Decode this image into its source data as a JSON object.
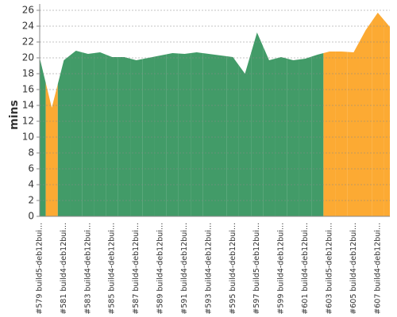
{
  "chart_data": {
    "type": "area",
    "y_label": "mins",
    "categories": [
      "#579 build5-deb12bui...",
      null,
      "#581 build4-deb12bui...",
      null,
      "#583 build4-deb12bui...",
      null,
      "#585 build4-deb12bui...",
      null,
      "#587 build4-deb12bui...",
      null,
      "#589 build4-deb12bui...",
      null,
      "#591 build4-deb12bui...",
      null,
      "#593 build4-deb12bui...",
      null,
      "#595 build4-deb12bui...",
      null,
      "#597 build5-deb12bui...",
      null,
      "#599 build4-deb12bui...",
      null,
      "#601 build4-deb12bui...",
      null,
      "#603 build5-deb12bui...",
      null,
      "#605 build4-deb12bui...",
      null,
      "#607 build4-deb12bui...",
      null
    ],
    "values": [
      20.0,
      13.7,
      19.7,
      20.9,
      20.5,
      20.7,
      20.1,
      20.1,
      19.7,
      20.0,
      20.3,
      20.6,
      20.5,
      20.7,
      20.5,
      20.3,
      20.1,
      18.0,
      23.2,
      19.7,
      20.1,
      19.7,
      19.9,
      20.4,
      20.8,
      20.8,
      20.7,
      23.5,
      25.7,
      23.9
    ],
    "colors": [
      "#429b68",
      "#fcaa33",
      "#429b68",
      "#429b68",
      "#429b68",
      "#429b68",
      "#429b68",
      "#429b68",
      "#429b68",
      "#429b68",
      "#429b68",
      "#429b68",
      "#429b68",
      "#429b68",
      "#429b68",
      "#429b68",
      "#429b68",
      "#429b68",
      "#429b68",
      "#429b68",
      "#429b68",
      "#429b68",
      "#429b68",
      "#429b68",
      "#fcaa33",
      "#fcaa33",
      "#fcaa33",
      "#fcaa33",
      "#fcaa33",
      "#fcaa33"
    ],
    "ylim": [
      0,
      26.8
    ],
    "yticks": [
      0,
      2,
      4,
      6,
      8,
      10,
      12,
      14,
      16,
      18,
      20,
      22,
      24,
      26
    ],
    "grid": true
  }
}
